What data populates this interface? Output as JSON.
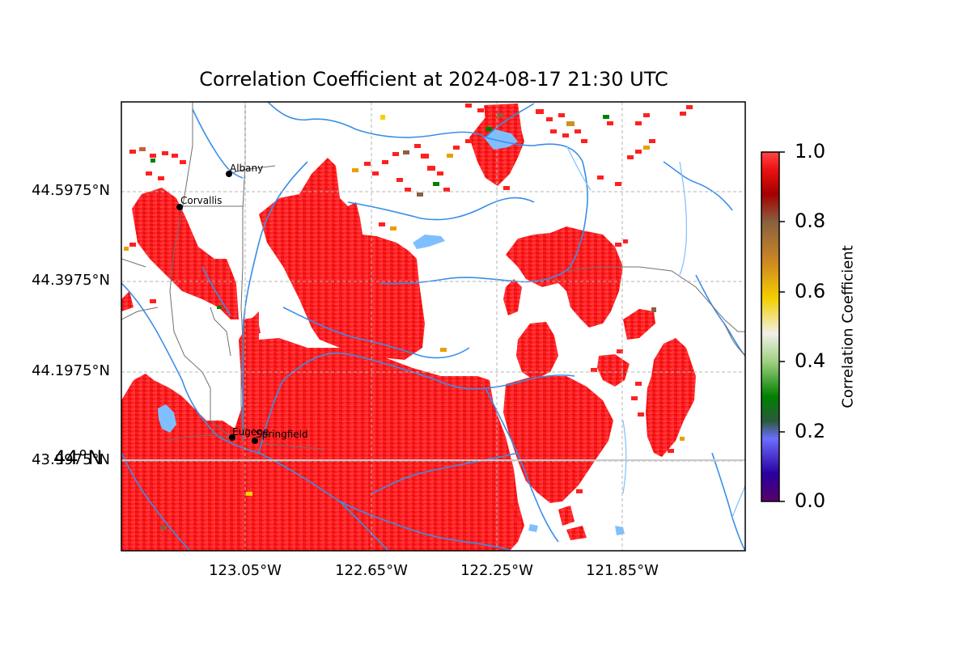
{
  "title": "Correlation Coefficient at 2024-08-17 21:30 UTC",
  "y_tick_labels": [
    "44.5975°N",
    "44.3975°N",
    "44.1975°N",
    "43.9975°N"
  ],
  "x_tick_labels": [
    "123.05°W",
    "122.65°W",
    "122.25°W",
    "121.85°W"
  ],
  "overlap_label": "44°N",
  "colorbar": {
    "label": "Correlation Coefficient",
    "ticks": [
      "1.0",
      "0.8",
      "0.6",
      "0.4",
      "0.2",
      "0.0"
    ],
    "colors": {
      "top": "#ff4646",
      "red": "#ee1111",
      "dark_red": "#a50000",
      "brown": "#8a6040",
      "orange": "#e8a000",
      "yellow": "#f5d000",
      "white": "#f0f0e8",
      "light_green": "#a0d080",
      "green": "#008000",
      "dark_green": "#2a5a3a",
      "blue": "#6d6dff",
      "purple": "#2a00a0",
      "bottom": "#5a006a"
    }
  },
  "map_colors": {
    "echo": "#ff1a1a",
    "river": "#3a8ee8",
    "lake": "#7fbfff",
    "road": "#707070",
    "grid": "#b4b4b4"
  },
  "cities": [
    {
      "name": "Albany"
    },
    {
      "name": "Corvallis"
    },
    {
      "name": "Eugene"
    },
    {
      "name": "Springfield"
    }
  ]
}
